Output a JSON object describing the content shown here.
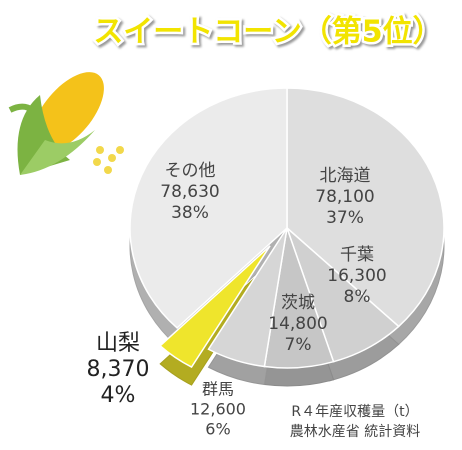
{
  "chart_data": {
    "type": "pie",
    "title": "スイートコーン（第5位）",
    "categories": [
      "北海道",
      "千葉",
      "茨城",
      "群馬",
      "山梨",
      "その他"
    ],
    "values": [
      78100,
      16300,
      14800,
      12600,
      8370,
      78630
    ],
    "value_labels": [
      "78,100",
      "16,300",
      "14,800",
      "12,600",
      "8,370",
      "78,630"
    ],
    "percents": [
      37,
      8,
      7,
      6,
      4,
      38
    ],
    "percent_labels": [
      "37%",
      "8%",
      "7%",
      "6%",
      "4%",
      "38%"
    ],
    "colors": [
      "#dedede",
      "#d0d0d0",
      "#c6c6c6",
      "#d6d6d6",
      "#efe52c",
      "#ebebeb"
    ],
    "note": [
      "R４年産収穫量（t）",
      "農林水産省 統計資料"
    ]
  }
}
